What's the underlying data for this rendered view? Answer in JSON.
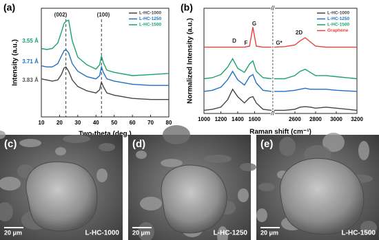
{
  "chart_data": [
    {
      "type": "line",
      "panel": "(a)",
      "xlabel": "Two-theta (deg.)",
      "ylabel": "Intensity (a.u.)",
      "x": [
        10,
        13,
        16,
        19,
        21,
        22.5,
        23.5,
        25,
        27,
        30,
        35,
        40,
        42,
        43,
        44,
        46,
        50,
        60,
        70,
        80
      ],
      "series": [
        {
          "name": "L-HC-1000",
          "color": "#444444",
          "values": [
            3.5,
            3.4,
            3.3,
            3.4,
            3.9,
            4.5,
            4.6,
            4.2,
            3.4,
            2.8,
            2.4,
            2.2,
            2.5,
            3.2,
            2.8,
            2.2,
            2.0,
            1.7,
            1.6,
            1.6
          ]
        },
        {
          "name": "L-HC-1250",
          "color": "#1f6fc4",
          "values": [
            4.7,
            4.6,
            4.6,
            4.9,
            5.6,
            6.1,
            6.2,
            5.9,
            4.9,
            4.2,
            3.7,
            3.5,
            3.8,
            4.6,
            4.1,
            3.5,
            3.3,
            3.0,
            2.9,
            2.9
          ]
        },
        {
          "name": "L-HC-1500",
          "color": "#19a36a",
          "values": [
            6.3,
            6.2,
            6.3,
            6.8,
            7.8,
            8.6,
            8.8,
            8.9,
            7.0,
            5.5,
            4.8,
            4.4,
            4.8,
            5.6,
            5.0,
            4.3,
            4.1,
            3.8,
            3.9,
            4.0
          ]
        }
      ],
      "xlim": [
        10,
        80
      ],
      "xticks": [
        10,
        20,
        30,
        40,
        50,
        60,
        70,
        80
      ],
      "ylim": [
        0,
        10
      ],
      "ref_lines": [
        23.5,
        43
      ],
      "annotations": [
        {
          "text": "(002)",
          "color": "#222222"
        },
        {
          "text": "(100)",
          "color": "#222222"
        },
        {
          "text": "3.55 Å",
          "color": "#19a36a"
        },
        {
          "text": "3.71 Å",
          "color": "#1f6fc4"
        },
        {
          "text": "3.83 Å",
          "color": "#555555"
        }
      ]
    },
    {
      "type": "line",
      "panel": "(b)",
      "xlabel": "Raman shift (cm⁻¹)",
      "ylabel": "Normalized Intensity (a.u.)",
      "x": [
        1000,
        1100,
        1200,
        1280,
        1340,
        1400,
        1480,
        1540,
        1580,
        1620,
        1700,
        1800,
        2400,
        2500,
        2600,
        2650,
        2700,
        2750,
        2800,
        2900,
        3000,
        3200
      ],
      "series": [
        {
          "name": "L-HC-1000",
          "color": "#444444",
          "values": [
            0.3,
            0.4,
            0.6,
            1.3,
            2.3,
            1.6,
            1.0,
            1.5,
            1.6,
            1.0,
            0.4,
            0.3,
            0.3,
            0.3,
            0.4,
            0.6,
            0.65,
            0.6,
            0.5,
            0.6,
            0.5,
            0.3
          ]
        },
        {
          "name": "L-HC-1250",
          "color": "#1f6fc4",
          "values": [
            2.1,
            2.2,
            2.5,
            3.2,
            4.0,
            3.2,
            2.7,
            3.5,
            3.7,
            2.9,
            2.2,
            2.1,
            2.1,
            2.1,
            2.2,
            2.3,
            2.4,
            2.3,
            2.3,
            2.3,
            2.2,
            2.1
          ]
        },
        {
          "name": "L-HC-1500",
          "color": "#19a36a",
          "values": [
            3.3,
            3.4,
            3.7,
            4.4,
            5.2,
            4.3,
            3.9,
            4.7,
            5.0,
            4.0,
            3.4,
            3.3,
            3.3,
            3.3,
            3.6,
            4.0,
            4.2,
            3.9,
            3.6,
            3.6,
            3.5,
            3.3
          ]
        },
        {
          "name": "Graphene",
          "color": "#e8413c",
          "values": [
            6.3,
            6.3,
            6.3,
            6.3,
            6.3,
            6.3,
            6.3,
            6.4,
            8.2,
            6.4,
            6.3,
            6.3,
            6.3,
            6.35,
            6.5,
            6.9,
            7.2,
            6.8,
            6.4,
            6.3,
            6.3,
            6.3
          ]
        }
      ],
      "xlim": [
        1000,
        3200
      ],
      "xbreak": [
        1800,
        2400
      ],
      "xticks": [
        1000,
        1200,
        1400,
        1600,
        2600,
        2800,
        3000,
        3200
      ],
      "ylim": [
        0,
        10
      ],
      "annotations": [
        {
          "text": "D",
          "color": "#222222"
        },
        {
          "text": "F",
          "color": "#222222"
        },
        {
          "text": "G",
          "color": "#222222"
        },
        {
          "text": "G*",
          "color": "#222222"
        },
        {
          "text": "2D",
          "color": "#222222"
        }
      ]
    }
  ],
  "images": [
    {
      "panel": "(c)",
      "scale_bar": "20 μm",
      "sample": "L-HC-1000"
    },
    {
      "panel": "(d)",
      "scale_bar": "20 μm",
      "sample": "L-HC-1250"
    },
    {
      "panel": "(e)",
      "scale_bar": "20 μm",
      "sample": "L-HC-1500"
    }
  ]
}
